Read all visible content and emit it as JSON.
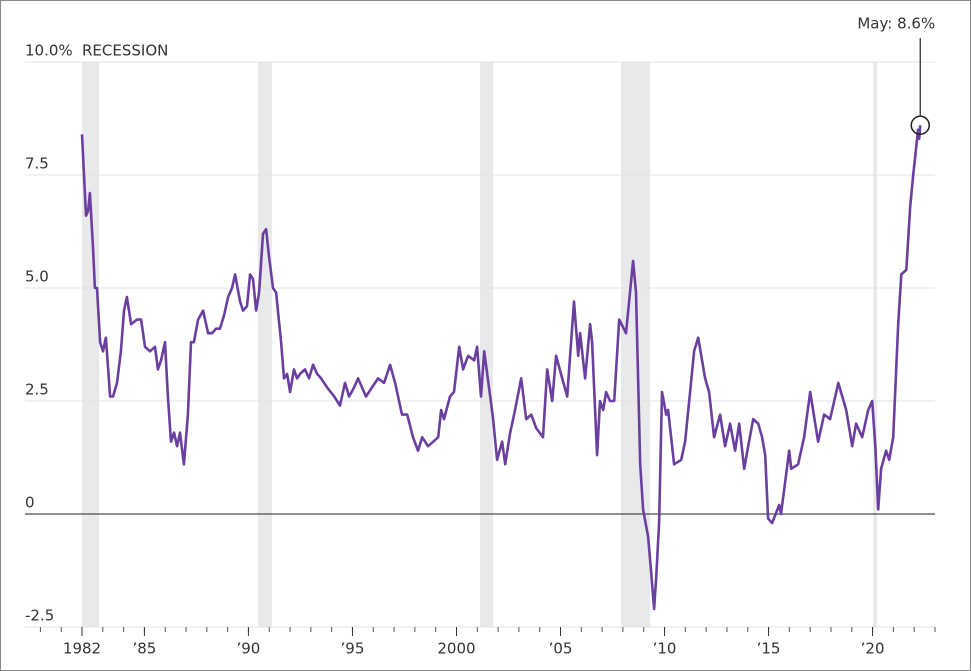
{
  "chart_data": {
    "type": "line",
    "recession_label": "RECESSION",
    "annotation": "May: 8.6%",
    "xlim": [
      1979.26,
      2023.0
    ],
    "ylim": [
      -2.5,
      10
    ],
    "xticks": [
      {
        "value": 1982,
        "label": "1982"
      },
      {
        "value": 1985,
        "label": "’85"
      },
      {
        "value": 1990,
        "label": "’90"
      },
      {
        "value": 1995,
        "label": "’95"
      },
      {
        "value": 2000,
        "label": "2000"
      },
      {
        "value": 2005,
        "label": "’05"
      },
      {
        "value": 2010,
        "label": "’10"
      },
      {
        "value": 2015,
        "label": "’15"
      },
      {
        "value": 2020,
        "label": "’20"
      }
    ],
    "yticks": [
      {
        "value": -2.5,
        "label": "-2.5"
      },
      0,
      2.5,
      {
        "value": 5,
        "label": "5.0"
      },
      7.5,
      {
        "value": 10,
        "label": "10.0%"
      }
    ],
    "grid": true,
    "recession_color": "#e8e9eb",
    "recessions": [
      [
        1982.0,
        1982.82
      ],
      [
        1990.46,
        1991.13
      ],
      [
        2001.13,
        2001.76
      ],
      [
        2007.91,
        2009.31
      ],
      [
        2020.03,
        2020.22
      ]
    ],
    "series": [
      {
        "color": "#6b3fa0",
        "x": [
          1982.0,
          1982.19,
          1982.29,
          1982.38,
          1982.53,
          1982.62,
          1982.72,
          1982.87,
          1983.01,
          1983.15,
          1983.35,
          1983.49,
          1983.68,
          1983.87,
          1984.02,
          1984.16,
          1984.36,
          1984.64,
          1984.84,
          1985.03,
          1985.27,
          1985.51,
          1985.65,
          1985.8,
          1985.99,
          1986.13,
          1986.28,
          1986.42,
          1986.57,
          1986.71,
          1986.9,
          1987.09,
          1987.24,
          1987.38,
          1987.58,
          1987.82,
          1988.06,
          1988.25,
          1988.44,
          1988.63,
          1988.83,
          1989.02,
          1989.21,
          1989.36,
          1989.6,
          1989.74,
          1989.93,
          1990.08,
          1990.22,
          1990.37,
          1990.51,
          1990.7,
          1990.85,
          1990.99,
          1991.18,
          1991.33,
          1991.57,
          1991.71,
          1991.86,
          1992.0,
          1992.19,
          1992.34,
          1992.48,
          1992.72,
          1992.91,
          1993.11,
          1993.3,
          1993.49,
          1993.78,
          1994.12,
          1994.4,
          1994.64,
          1994.84,
          1995.08,
          1995.27,
          1995.46,
          1995.65,
          1995.94,
          1996.23,
          1996.52,
          1996.81,
          1997.05,
          1997.38,
          1997.63,
          1997.91,
          1998.15,
          1998.35,
          1998.63,
          1998.88,
          1999.12,
          1999.26,
          1999.4,
          1999.69,
          1999.88,
          2000.13,
          2000.32,
          2000.56,
          2000.85,
          2000.99,
          2001.18,
          2001.33,
          2001.62,
          2001.76,
          2001.95,
          2002.19,
          2002.34,
          2002.58,
          2002.77,
          2003.11,
          2003.35,
          2003.59,
          2003.83,
          2004.16,
          2004.36,
          2004.6,
          2004.79,
          2005.08,
          2005.32,
          2005.65,
          2005.85,
          2005.94,
          2006.18,
          2006.42,
          2006.52,
          2006.76,
          2006.9,
          2007.05,
          2007.19,
          2007.38,
          2007.58,
          2007.82,
          2008.15,
          2008.49,
          2008.63,
          2008.83,
          2008.97,
          2009.21,
          2009.36,
          2009.5,
          2009.6,
          2009.74,
          2009.88,
          2010.08,
          2010.17,
          2010.46,
          2010.8,
          2010.99,
          2011.23,
          2011.42,
          2011.62,
          2011.95,
          2012.14,
          2012.38,
          2012.67,
          2012.91,
          2013.15,
          2013.39,
          2013.59,
          2013.83,
          2014.02,
          2014.26,
          2014.5,
          2014.69,
          2014.84,
          2014.98,
          2015.17,
          2015.51,
          2015.6,
          2015.99,
          2016.09,
          2016.42,
          2016.71,
          2017.0,
          2017.38,
          2017.67,
          2017.96,
          2018.35,
          2018.73,
          2019.02,
          2019.21,
          2019.5,
          2019.79,
          2019.98,
          2020.13,
          2020.27,
          2020.41,
          2020.65,
          2020.8,
          2020.99,
          2021.23,
          2021.38,
          2021.62,
          2021.81,
          2021.95,
          2022.19,
          2022.24,
          2022.29
        ],
        "values": [
          8.4,
          6.6,
          6.7,
          7.1,
          5.9,
          5.0,
          5.0,
          3.8,
          3.6,
          3.9,
          2.6,
          2.6,
          2.9,
          3.6,
          4.5,
          4.8,
          4.2,
          4.3,
          4.3,
          3.7,
          3.6,
          3.7,
          3.2,
          3.4,
          3.8,
          2.6,
          1.6,
          1.8,
          1.5,
          1.8,
          1.1,
          2.2,
          3.8,
          3.8,
          4.3,
          4.5,
          4.0,
          4.0,
          4.1,
          4.1,
          4.4,
          4.8,
          5.0,
          5.3,
          4.7,
          4.5,
          4.6,
          5.3,
          5.2,
          4.5,
          4.9,
          6.2,
          6.3,
          5.7,
          5.0,
          4.9,
          3.8,
          3.0,
          3.1,
          2.7,
          3.2,
          3.0,
          3.1,
          3.2,
          3.0,
          3.3,
          3.1,
          3.0,
          2.8,
          2.6,
          2.4,
          2.9,
          2.6,
          2.8,
          3.0,
          2.8,
          2.6,
          2.8,
          3.0,
          2.9,
          3.3,
          2.9,
          2.2,
          2.2,
          1.7,
          1.4,
          1.7,
          1.5,
          1.6,
          1.7,
          2.3,
          2.1,
          2.6,
          2.7,
          3.7,
          3.2,
          3.5,
          3.4,
          3.7,
          2.6,
          3.6,
          2.6,
          2.1,
          1.2,
          1.6,
          1.1,
          1.8,
          2.2,
          3.0,
          2.1,
          2.2,
          1.9,
          1.7,
          3.2,
          2.5,
          3.5,
          3.0,
          2.6,
          4.7,
          3.5,
          4.0,
          3.0,
          4.2,
          3.8,
          1.3,
          2.5,
          2.3,
          2.7,
          2.5,
          2.5,
          4.3,
          4.0,
          5.6,
          4.9,
          1.1,
          0.1,
          -0.5,
          -1.3,
          -2.1,
          -1.4,
          -0.2,
          2.7,
          2.2,
          2.3,
          1.1,
          1.2,
          1.6,
          2.7,
          3.6,
          3.9,
          3.0,
          2.7,
          1.7,
          2.2,
          1.5,
          2.0,
          1.4,
          2.0,
          1.0,
          1.5,
          2.1,
          2.0,
          1.7,
          1.3,
          -0.1,
          -0.2,
          0.2,
          0.0,
          1.4,
          1.0,
          1.1,
          1.7,
          2.7,
          1.6,
          2.2,
          2.1,
          2.9,
          2.3,
          1.5,
          2.0,
          1.7,
          2.3,
          2.5,
          1.5,
          0.1,
          1.0,
          1.4,
          1.2,
          1.7,
          4.2,
          5.3,
          5.4,
          6.8,
          7.5,
          8.5,
          8.3,
          8.6
        ]
      }
    ]
  }
}
